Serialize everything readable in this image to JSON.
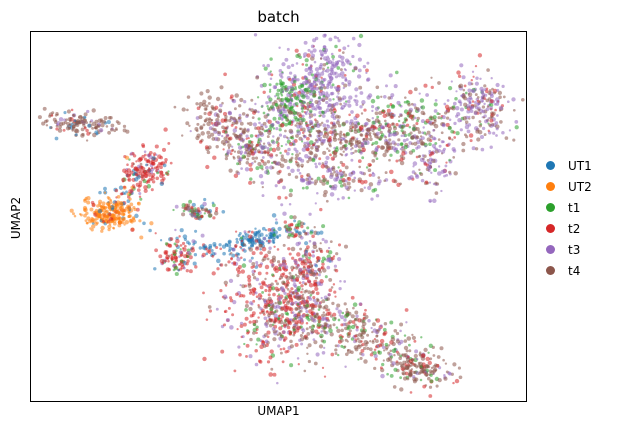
{
  "chart_data": {
    "type": "scatter",
    "title": "batch",
    "xlabel": "UMAP1",
    "ylabel": "UMAP2",
    "xticks": [],
    "yticks": [],
    "grid": false,
    "legend_position": "right",
    "series": [
      {
        "name": "UT1",
        "color": "#1f77b4"
      },
      {
        "name": "UT2",
        "color": "#ff7f0e"
      },
      {
        "name": "t1",
        "color": "#2ca02c"
      },
      {
        "name": "t2",
        "color": "#d62728"
      },
      {
        "name": "t3",
        "color": "#9467bd"
      },
      {
        "name": "t4",
        "color": "#8c564b"
      }
    ]
  }
}
